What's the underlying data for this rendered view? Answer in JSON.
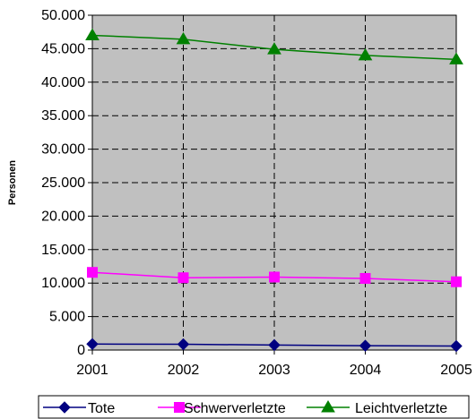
{
  "chart_data": {
    "type": "line",
    "x": [
      "2001",
      "2002",
      "2003",
      "2004",
      "2005"
    ],
    "ylabel": "Personen",
    "xlabel": "",
    "ylim": [
      0,
      50000
    ],
    "y_ticks": [
      "0",
      "5.000",
      "10.000",
      "15.000",
      "20.000",
      "25.000",
      "30.000",
      "35.000",
      "40.000",
      "45.000",
      "50.000"
    ],
    "grid": true,
    "legend_position": "bottom",
    "plot_background": "#C0C0C0",
    "series": [
      {
        "name": "Tote",
        "color": "#000080",
        "marker": "diamond",
        "values": [
          900,
          870,
          750,
          650,
          600
        ]
      },
      {
        "name": "Schwerverletzte",
        "color": "#FF00FF",
        "marker": "square",
        "values": [
          11600,
          10800,
          10900,
          10700,
          10200
        ]
      },
      {
        "name": "Leichtverletzte",
        "color": "#008000",
        "marker": "triangle",
        "values": [
          47000,
          46400,
          44900,
          44000,
          43400
        ]
      }
    ]
  }
}
